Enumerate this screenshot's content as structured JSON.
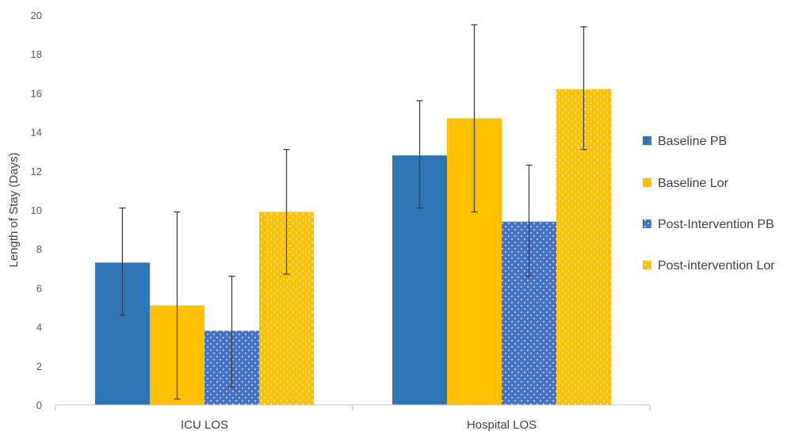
{
  "chart_data": {
    "type": "bar",
    "title": "",
    "xlabel": "",
    "ylabel": "Length of Stay (Days)",
    "ylim": [
      0,
      20
    ],
    "yticks": [
      0,
      2,
      4,
      6,
      8,
      10,
      12,
      14,
      16,
      18,
      20
    ],
    "grid": false,
    "legend_position": "right",
    "categories": [
      "ICU LOS",
      "Hospital LOS"
    ],
    "series": [
      {
        "name": "Baseline PB",
        "color": "#2E75B6",
        "pattern": "solid",
        "values": [
          7.3,
          12.8
        ],
        "error_low": [
          4.6,
          10.1
        ],
        "error_high": [
          10.1,
          15.6
        ]
      },
      {
        "name": "Baseline Lor",
        "color": "#FFC000",
        "pattern": "solid",
        "values": [
          5.1,
          14.7
        ],
        "error_low": [
          0.3,
          9.9
        ],
        "error_high": [
          9.9,
          19.5
        ]
      },
      {
        "name": "Post-Intervention PB",
        "color": "#4472C4",
        "pattern": "dotted",
        "values": [
          3.8,
          9.4
        ],
        "error_low": [
          0.9,
          6.6
        ],
        "error_high": [
          6.6,
          12.3
        ]
      },
      {
        "name": "Post-intervention Lor",
        "color": "#FFC000",
        "pattern": "dotted",
        "values": [
          9.9,
          16.2
        ],
        "error_low": [
          6.7,
          13.1
        ],
        "error_high": [
          13.1,
          19.4
        ]
      }
    ]
  }
}
